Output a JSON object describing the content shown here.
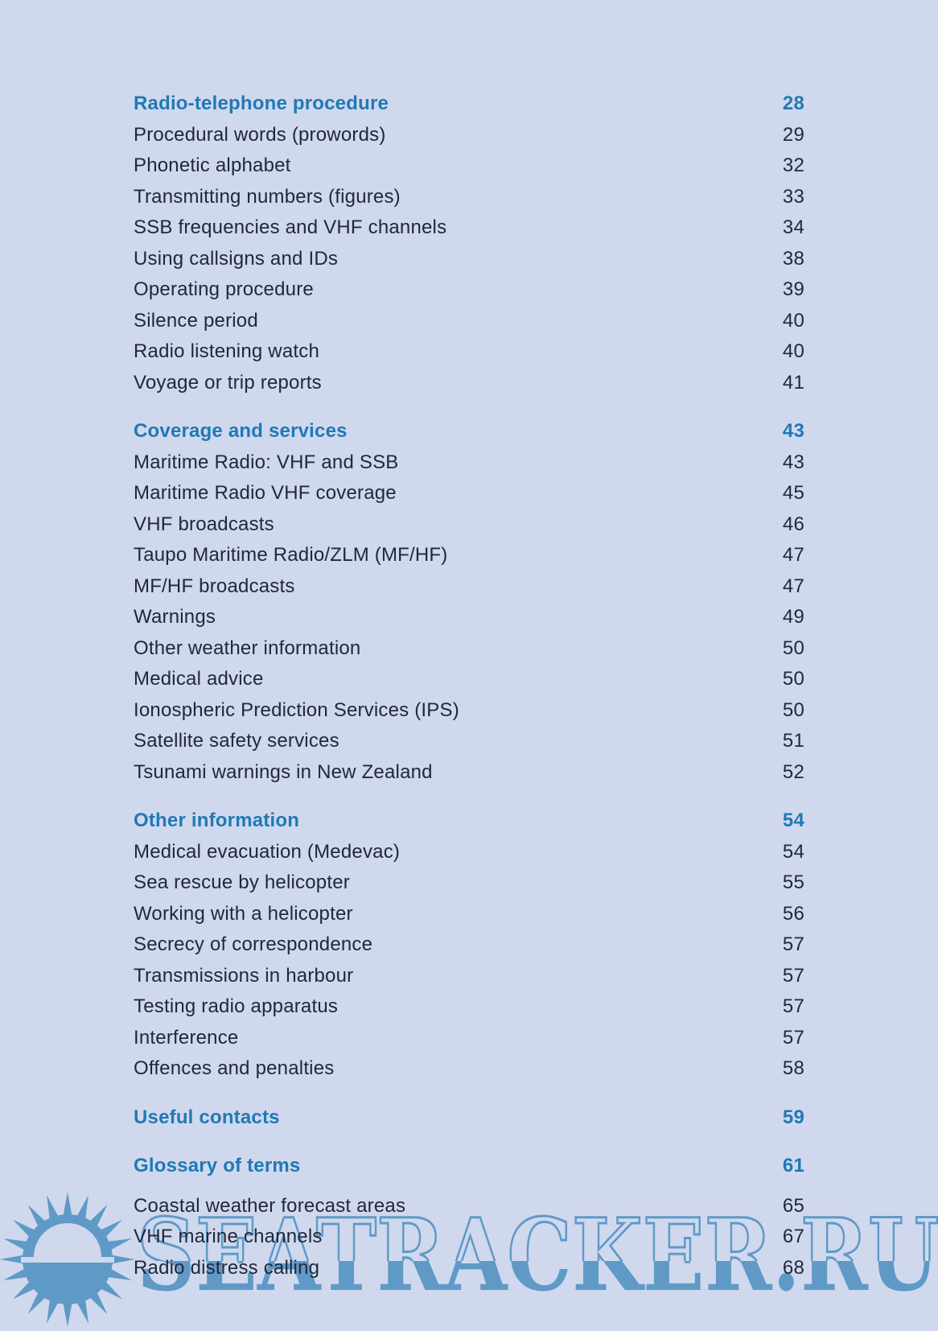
{
  "colors": {
    "background": "#d0d8ee",
    "heading_blue": "#2079b5",
    "body_text": "#20293a",
    "watermark_blue": "#5f9ac7"
  },
  "watermark": {
    "text": "SEATRACKER.RU",
    "icon": "sun-icon"
  },
  "toc": {
    "sections": [
      {
        "heading": {
          "label": "Radio-telephone procedure",
          "page": "28"
        },
        "items": [
          {
            "label": "Procedural words (prowords)",
            "page": "29"
          },
          {
            "label": "Phonetic alphabet",
            "page": "32"
          },
          {
            "label": "Transmitting numbers (figures)",
            "page": "33"
          },
          {
            "label": "SSB frequencies and VHF channels",
            "page": "34"
          },
          {
            "label": "Using callsigns and IDs",
            "page": "38"
          },
          {
            "label": "Operating procedure",
            "page": "39"
          },
          {
            "label": "Silence period",
            "page": "40"
          },
          {
            "label": "Radio listening watch",
            "page": "40"
          },
          {
            "label": "Voyage or trip reports",
            "page": "41"
          }
        ]
      },
      {
        "heading": {
          "label": "Coverage and services",
          "page": "43"
        },
        "items": [
          {
            "label": "Maritime Radio: VHF and SSB",
            "page": "43"
          },
          {
            "label": "Maritime Radio VHF coverage",
            "page": "45"
          },
          {
            "label": "VHF broadcasts",
            "page": "46"
          },
          {
            "label": "Taupo Maritime Radio/ZLM (MF/HF)",
            "page": "47"
          },
          {
            "label": "MF/HF broadcasts",
            "page": "47"
          },
          {
            "label": "Warnings",
            "page": "49"
          },
          {
            "label": "Other weather information",
            "page": "50"
          },
          {
            "label": "Medical advice",
            "page": "50"
          },
          {
            "label": "Ionospheric Prediction Services (IPS)",
            "page": "50"
          },
          {
            "label": "Satellite safety services",
            "page": "51"
          },
          {
            "label": "Tsunami warnings in New Zealand",
            "page": "52"
          }
        ]
      },
      {
        "heading": {
          "label": "Other information",
          "page": "54"
        },
        "items": [
          {
            "label": "Medical evacuation (Medevac)",
            "page": "54"
          },
          {
            "label": "Sea rescue by helicopter",
            "page": "55"
          },
          {
            "label": "Working with a helicopter",
            "page": "56"
          },
          {
            "label": "Secrecy of correspondence",
            "page": "57"
          },
          {
            "label": "Transmissions in harbour",
            "page": "57"
          },
          {
            "label": "Testing radio apparatus",
            "page": "57"
          },
          {
            "label": "Interference",
            "page": "57"
          },
          {
            "label": "Offences and penalties",
            "page": "58"
          }
        ]
      },
      {
        "heading": {
          "label": "Useful contacts",
          "page": "59"
        },
        "items": []
      },
      {
        "heading": {
          "label": "Glossary of terms",
          "page": "61"
        },
        "items": [
          {
            "label": "Coastal weather forecast areas",
            "page": "65"
          },
          {
            "label": "VHF marine channels",
            "page": "67"
          },
          {
            "label": "Radio distress calling",
            "page": "68"
          }
        ]
      }
    ]
  }
}
